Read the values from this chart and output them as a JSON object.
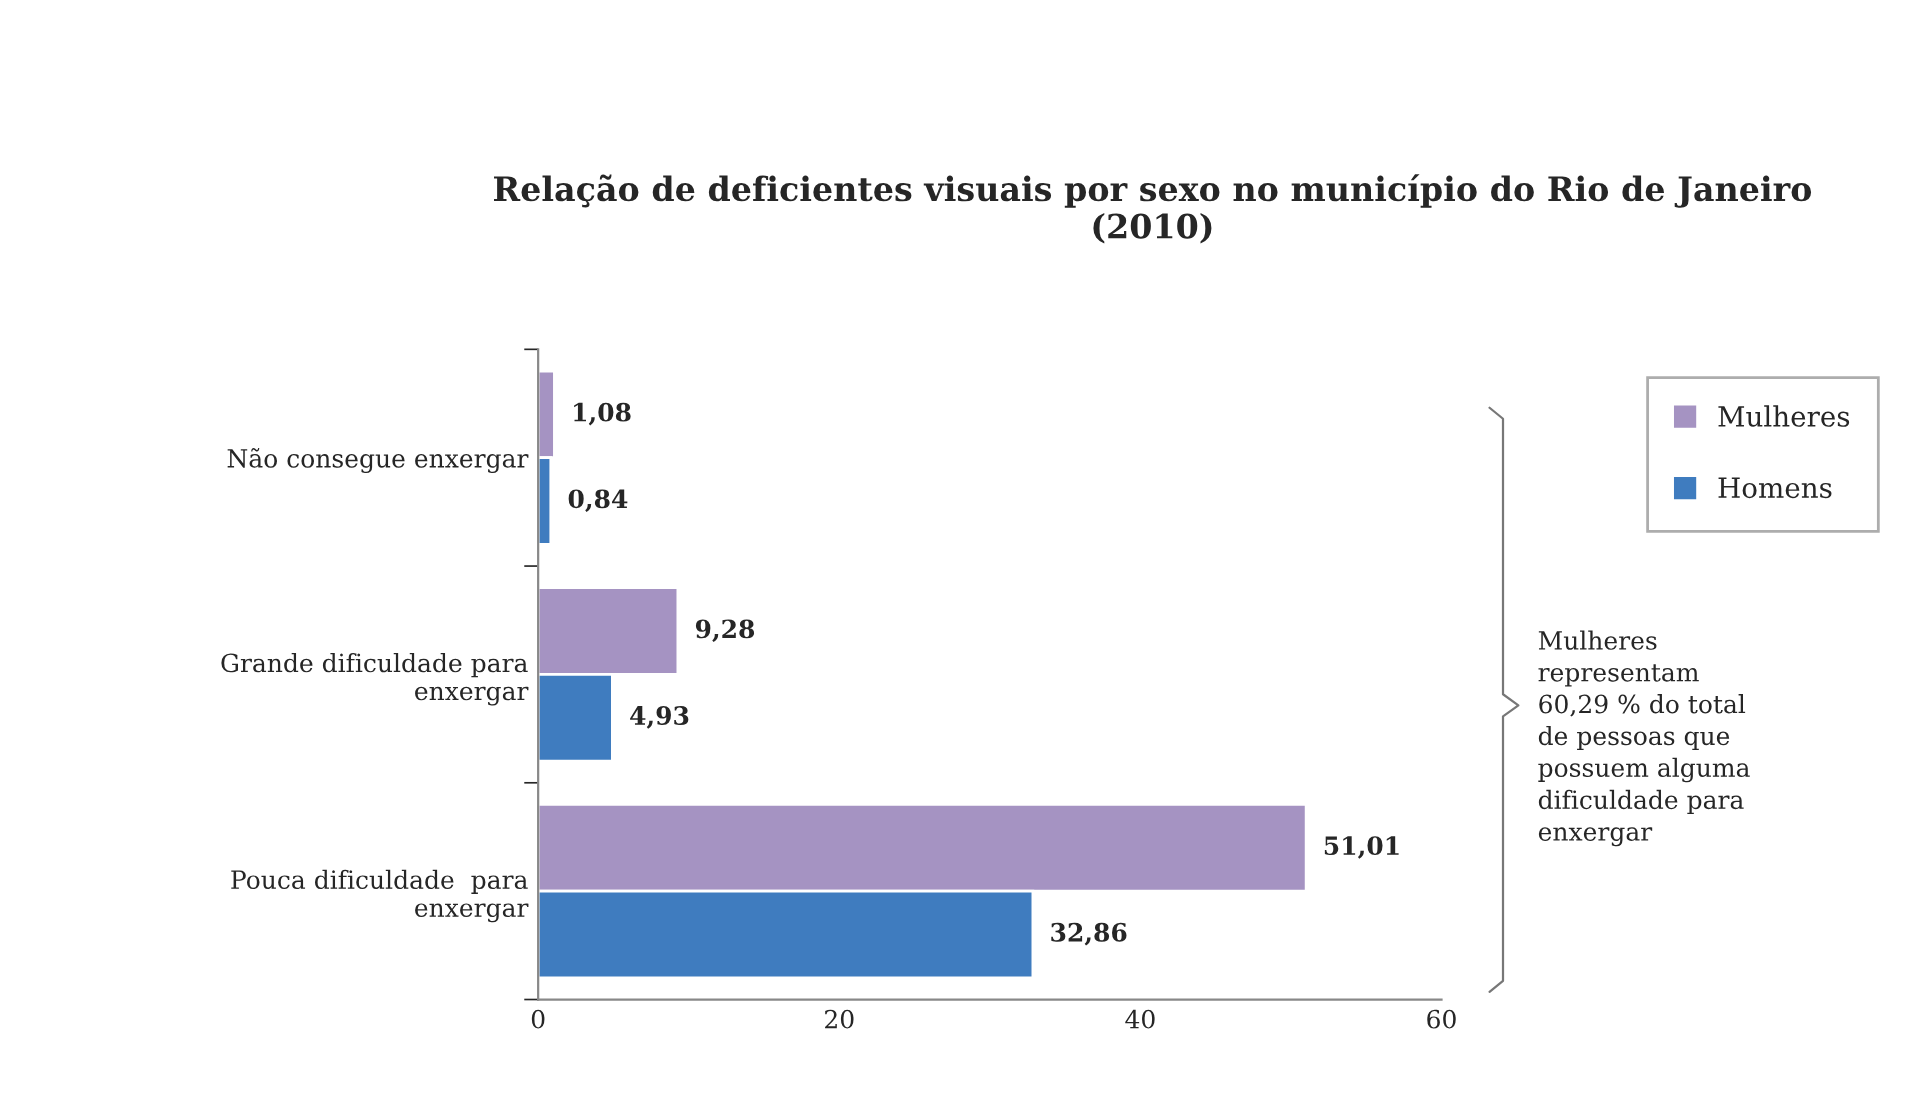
{
  "chart_data": {
    "type": "bar",
    "orientation": "horizontal",
    "title": "Relação de deficientes visuais por sexo no município do Rio de Janeiro\n(2010)",
    "categories": [
      "Não consegue enxergar",
      "Grande dificuldade para\nenxergar",
      "Pouca dificuldade  para\nenxergar"
    ],
    "series": [
      {
        "name": "Mulheres",
        "color": "#a593c2",
        "values": [
          1.08,
          9.28,
          51.01
        ],
        "value_labels": [
          "1,08",
          "9,28",
          "51,01"
        ]
      },
      {
        "name": "Homens",
        "color": "#3f7cbf",
        "values": [
          0.84,
          4.93,
          32.86
        ],
        "value_labels": [
          "0,84",
          "4,93",
          "32,86"
        ]
      }
    ],
    "xlim": [
      0,
      60
    ],
    "xticks": [
      0,
      20,
      40,
      60
    ],
    "grid": false,
    "legend": "right",
    "annotations": [
      "Mulheres\nrepresentam\n60,29 % do total\nde pessoas que\npossuem alguma\ndificuldade para\nenxergar"
    ]
  }
}
